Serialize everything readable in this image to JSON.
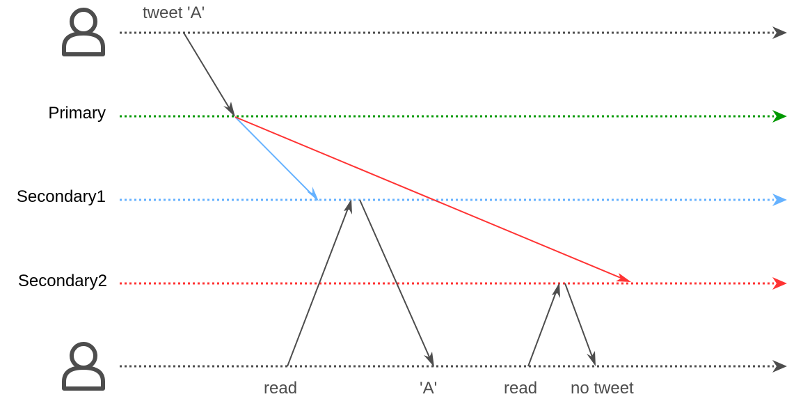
{
  "rows": {
    "client_writer": {
      "label": "",
      "color": "#4d4d4d",
      "icon": "user-icon"
    },
    "primary": {
      "label": "Primary",
      "color": "#009900"
    },
    "secondary1": {
      "label": "Secondary1",
      "color": "#66b2ff"
    },
    "secondary2": {
      "label": "Secondary2",
      "color": "#ff3333"
    },
    "client_reader": {
      "label": "",
      "color": "#4d4d4d",
      "icon": "user-icon"
    }
  },
  "messages": {
    "write": "tweet 'A'",
    "read1": "read",
    "reply1": "'A'",
    "read2": "read",
    "reply2": "no tweet"
  },
  "replication_colors": {
    "to_secondary1": "#66b2ff",
    "to_secondary2": "#ff3333",
    "client_messages": "#4d4d4d"
  }
}
